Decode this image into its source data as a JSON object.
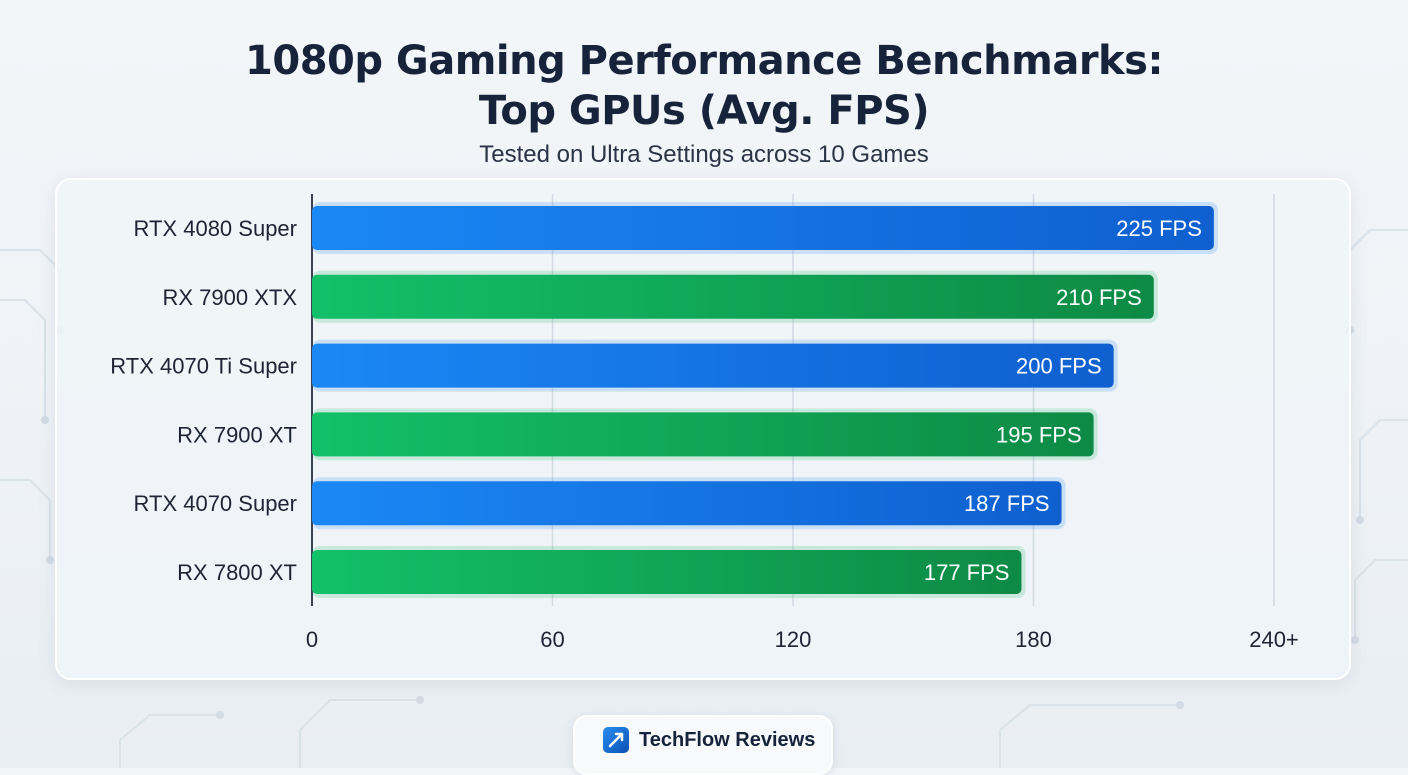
{
  "title_line1": "1080p Gaming Performance Benchmarks:",
  "title_line2": "Top GPUs (Avg. FPS)",
  "subtitle": "Tested on Ultra Settings across 10 Games",
  "brand": {
    "name": "TechFlow Reviews",
    "icon": "techflow-logo-icon"
  },
  "colors": {
    "nvidia_bar": "#1a7ff0",
    "amd_bar": "#16b35f",
    "background": "#eef2f6",
    "title": "#16233a"
  },
  "chart_data": {
    "type": "bar",
    "orientation": "horizontal",
    "categories": [
      "RTX 4080 Super",
      "RX 7900 XTX",
      "RTX 4070 Ti Super",
      "RX 7900 XT",
      "RTX 4070 Super",
      "RX 7800 XT"
    ],
    "values": [
      225,
      210,
      200,
      195,
      187,
      177
    ],
    "value_labels": [
      "225 FPS",
      "210 FPS",
      "200 FPS",
      "195 FPS",
      "187 FPS",
      "177 FPS"
    ],
    "bar_colors": [
      "#1a7ff0",
      "#16b35f",
      "#1a7ff0",
      "#16b35f",
      "#1a7ff0",
      "#16b35f"
    ],
    "x_ticks": [
      "0",
      "60",
      "120",
      "180",
      "240+"
    ],
    "xlim": [
      0,
      240
    ],
    "grid": true,
    "legend": "none"
  }
}
